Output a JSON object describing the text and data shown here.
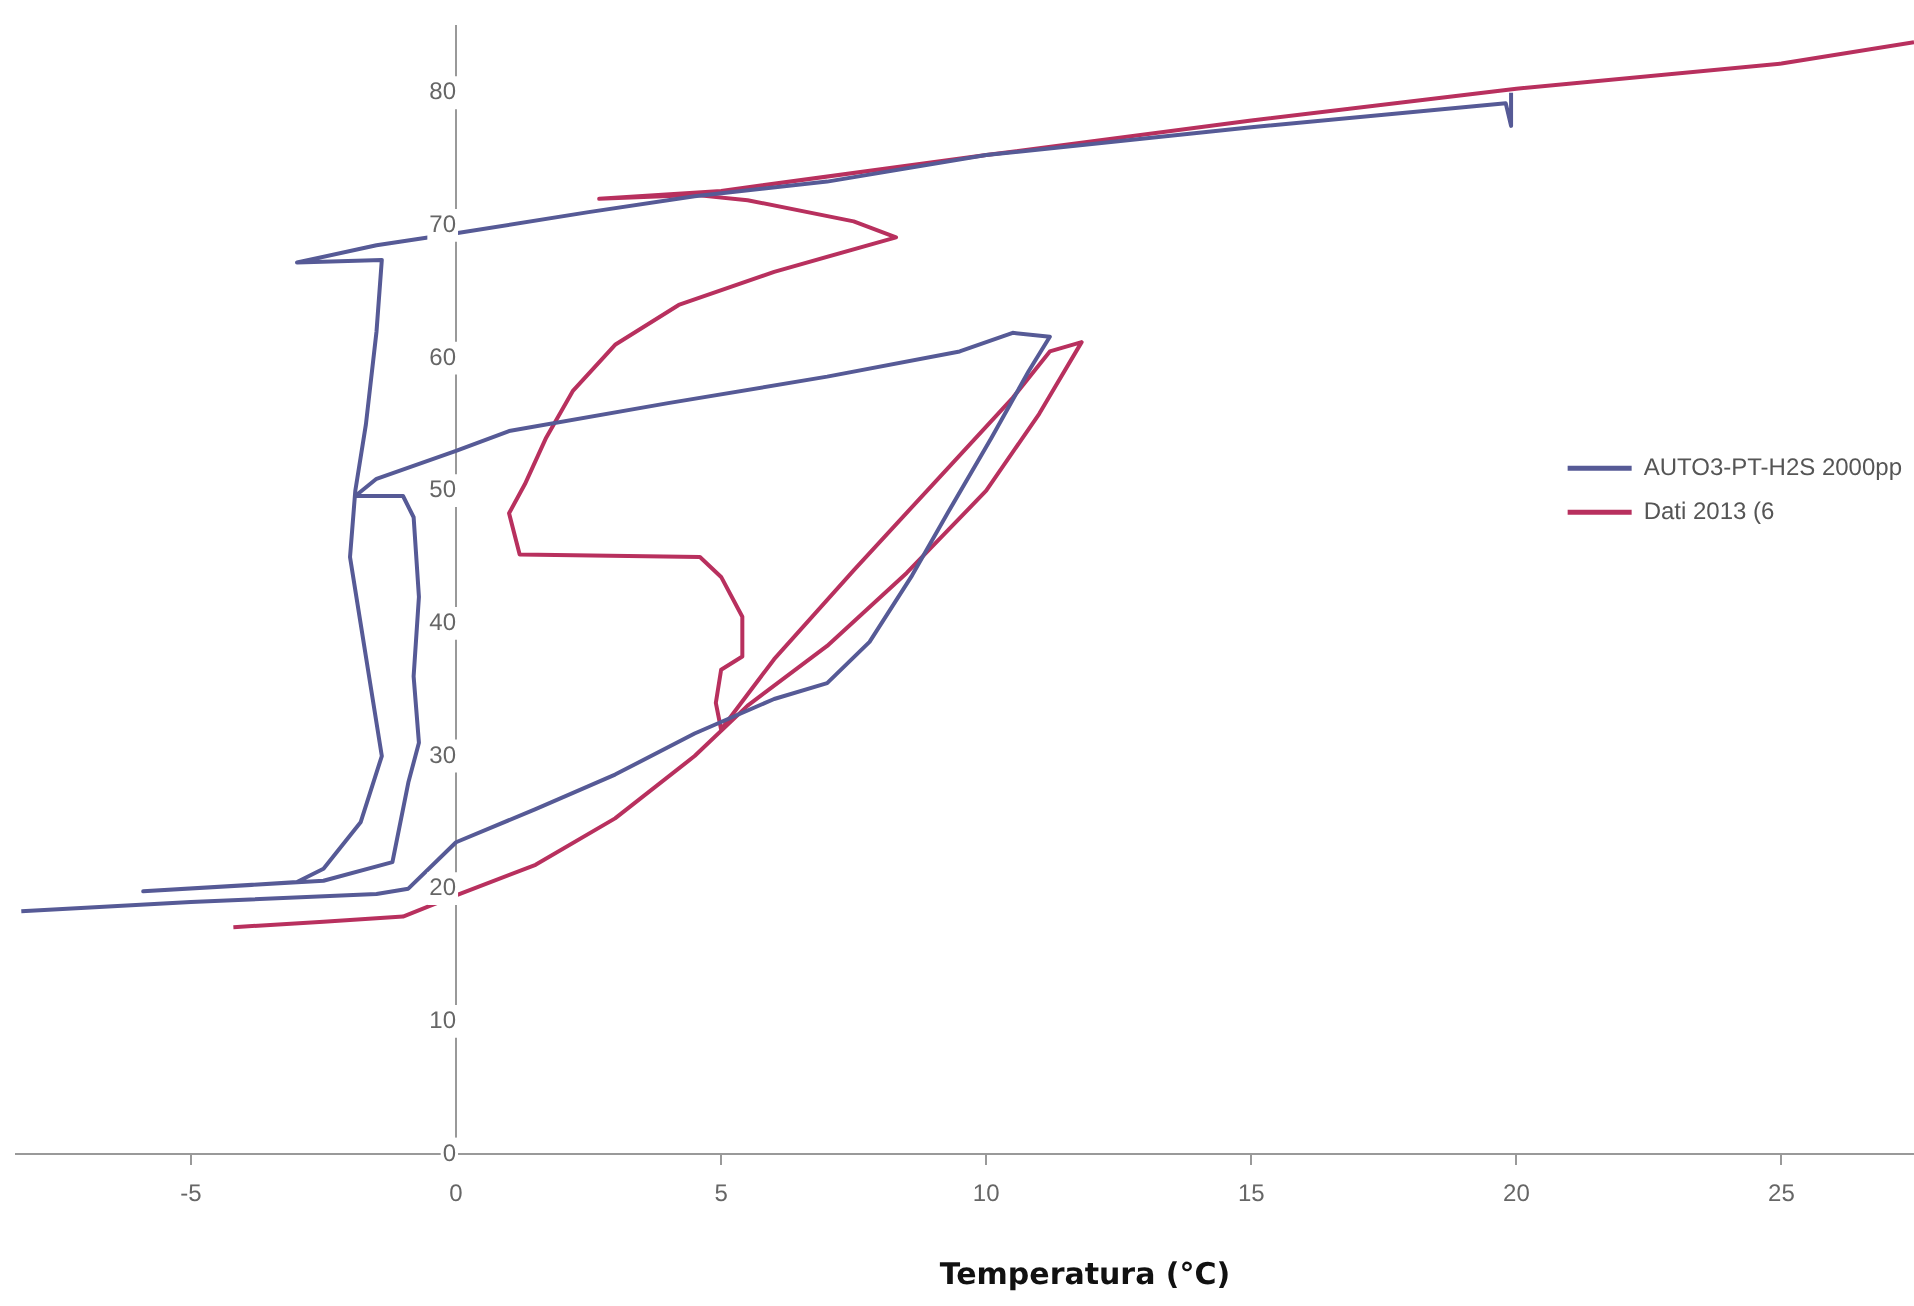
{
  "chart_data": {
    "type": "line",
    "xlabel": "Temperatura (°C)",
    "xlim": [
      -8.3,
      27.5
    ],
    "xticks": [
      -5,
      0,
      5,
      10,
      15,
      20,
      25
    ],
    "ylim": [
      0,
      85
    ],
    "yticks": [
      0,
      10,
      20,
      30,
      40,
      50,
      60,
      70,
      80
    ],
    "grid": false,
    "legend": "right",
    "marker": "none",
    "line_style": "solid",
    "series": [
      {
        "name": "AUTO3-PT-H2S 2000pp",
        "color": "#565a96",
        "x": [
          -8.2,
          -5,
          -1.5,
          -0.9,
          0,
          1.5,
          3,
          4.5,
          6,
          7,
          7.8,
          8.6,
          9.3,
          10.1,
          10.8,
          11.2,
          10.5,
          9.5,
          7,
          4,
          1,
          0,
          -1.5,
          -1.9,
          -1,
          -0.8,
          -0.7,
          -0.8,
          -0.7,
          -0.9,
          -1.2,
          -2.5,
          -5.9,
          -3,
          -2.5,
          -1.8,
          -1.4,
          -1.6,
          -1.8,
          -2,
          -1.9,
          -1.7,
          -1.5,
          -1.4,
          -3,
          -1.5,
          0,
          2.5,
          4.5,
          7,
          10,
          15,
          19.8,
          19.9,
          19.9
        ],
        "values": [
          18.3,
          19,
          19.6,
          20,
          23.5,
          26,
          28.6,
          31.7,
          34.3,
          35.5,
          38.6,
          43.6,
          48.5,
          54,
          59,
          61.6,
          61.9,
          60.5,
          58.6,
          56.6,
          54.5,
          53,
          50.9,
          49.6,
          49.6,
          48,
          42,
          36,
          31,
          28,
          22,
          20.6,
          19.8,
          20.5,
          21.5,
          25,
          30,
          35,
          40,
          45,
          50,
          55,
          62,
          67.4,
          67.2,
          68.5,
          69.4,
          71,
          72.2,
          73.3,
          75.3,
          77.4,
          79.2,
          77.5,
          80
        ]
      },
      {
        "name": "Dati 2013 (6",
        "color": "#b8305e",
        "x": [
          -4.2,
          -2.5,
          -1,
          0,
          1.5,
          3,
          4.5,
          5.5,
          7,
          8.5,
          10,
          11,
          11.8,
          11.2,
          10.5,
          9,
          7.5,
          6,
          5,
          4.9,
          5,
          5.4,
          5.4,
          5,
          4.6,
          1.2,
          1,
          1.3,
          1.7,
          2.2,
          3,
          4.2,
          6,
          8.3,
          7.5,
          5.5,
          4.5,
          2.7,
          5,
          10,
          15,
          20,
          25,
          27.5
        ],
        "values": [
          17.1,
          17.5,
          17.9,
          19.5,
          21.8,
          25.3,
          30,
          33.8,
          38.3,
          43.8,
          50,
          55.8,
          61.2,
          60.5,
          57,
          50.5,
          44,
          37.3,
          32,
          34,
          36.5,
          37.5,
          40.5,
          43.5,
          45,
          45.2,
          48.3,
          50.5,
          54,
          57.5,
          61,
          64,
          66.5,
          69.1,
          70.3,
          71.9,
          72.3,
          72,
          72.6,
          75.3,
          77.9,
          80.3,
          82.2,
          83.8
        ]
      }
    ]
  }
}
